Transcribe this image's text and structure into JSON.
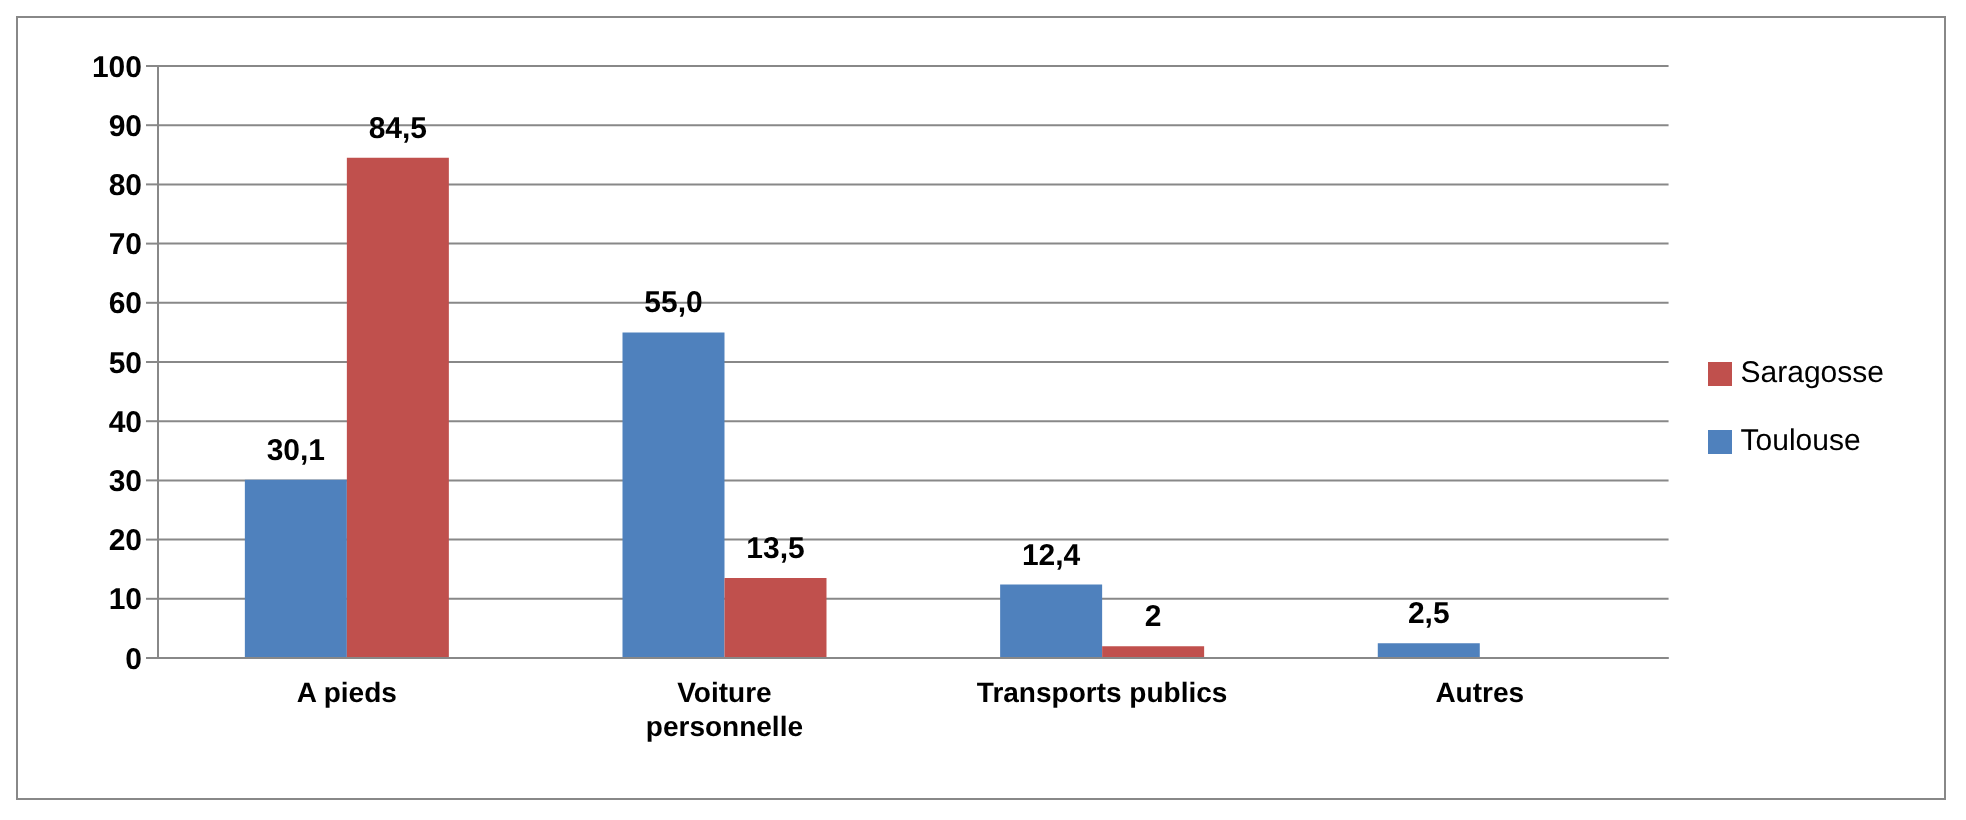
{
  "chart_data": {
    "type": "bar",
    "categories": [
      "A pieds",
      "Voiture personnelle",
      "Transports publics",
      "Autres"
    ],
    "series": [
      {
        "name": "Toulouse",
        "color": "#4f81bd",
        "values": [
          30.1,
          55.0,
          12.4,
          2.5
        ],
        "value_labels": [
          "30,1",
          "55,0",
          "12,4",
          "2,5"
        ]
      },
      {
        "name": "Saragosse",
        "color": "#c0504d",
        "values": [
          84.5,
          13.5,
          2,
          null
        ],
        "value_labels": [
          "84,5",
          "13,5",
          "2",
          null
        ]
      }
    ],
    "ylim": [
      0,
      100
    ],
    "yticks": [
      0,
      10,
      20,
      30,
      40,
      50,
      60,
      70,
      80,
      90,
      100
    ],
    "grid": "y",
    "legend": "right"
  }
}
